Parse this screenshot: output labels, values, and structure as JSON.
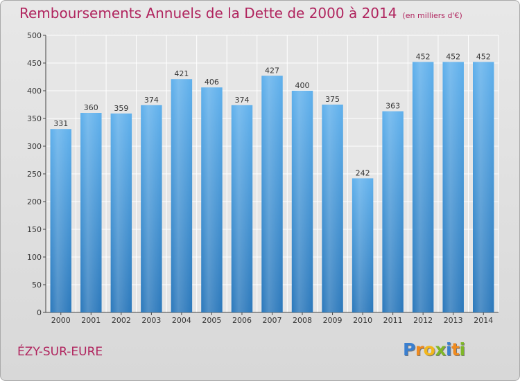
{
  "chart_data": {
    "type": "bar",
    "title": "Remboursements Annuels de la Dette de 2000 à 2014",
    "subtitle": "(en milliers d'€)",
    "categories": [
      "2000",
      "2001",
      "2002",
      "2003",
      "2004",
      "2005",
      "2006",
      "2007",
      "2008",
      "2009",
      "2010",
      "2011",
      "2012",
      "2013",
      "2014"
    ],
    "values": [
      331,
      360,
      359,
      374,
      421,
      406,
      374,
      427,
      400,
      375,
      242,
      363,
      452,
      452,
      452
    ],
    "xlabel": "",
    "ylabel": "",
    "ylim": [
      0,
      500
    ],
    "yticks": [
      0,
      50,
      100,
      150,
      200,
      250,
      300,
      350,
      400,
      450,
      500
    ],
    "grid": true,
    "bar_color": "#3d94d8"
  },
  "footer": {
    "place": "ÉZY-SUR-EURE",
    "logo_letters": [
      {
        "ch": "P",
        "color": "#3a7fd0"
      },
      {
        "ch": "r",
        "color": "#ef8a1e"
      },
      {
        "ch": "o",
        "color": "#f3b71c"
      },
      {
        "ch": "x",
        "color": "#7fb728"
      },
      {
        "ch": "i",
        "color": "#3a7fd0"
      },
      {
        "ch": "t",
        "color": "#ef8a1e"
      },
      {
        "ch": "i",
        "color": "#7fb728"
      }
    ]
  }
}
